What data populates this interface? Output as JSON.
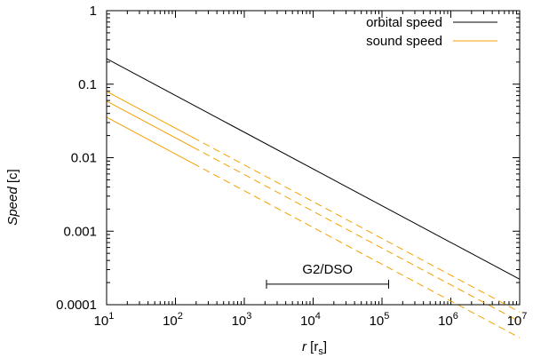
{
  "chart_data": {
    "type": "line",
    "title": "",
    "xscale": "log",
    "yscale": "log",
    "xlim": [
      10,
      10000000
    ],
    "ylim": [
      0.0001,
      1
    ],
    "xlabel": {
      "var": "r",
      "unit_base": "r",
      "unit_sub": "s"
    },
    "ylabel": {
      "var": "Speed",
      "unit": "[c]"
    },
    "x_ticks": [
      {
        "value": 10,
        "base": "10",
        "exp": "1"
      },
      {
        "value": 100,
        "base": "10",
        "exp": "2"
      },
      {
        "value": 1000,
        "base": "10",
        "exp": "3"
      },
      {
        "value": 10000,
        "base": "10",
        "exp": "4"
      },
      {
        "value": 100000,
        "base": "10",
        "exp": "5"
      },
      {
        "value": 1000000,
        "base": "10",
        "exp": "6"
      },
      {
        "value": 10000000,
        "base": "10",
        "exp": "7"
      }
    ],
    "y_ticks": [
      {
        "value": 0.0001,
        "label": "0.0001"
      },
      {
        "value": 0.001,
        "label": "0.001"
      },
      {
        "value": 0.01,
        "label": "0.01"
      },
      {
        "value": 0.1,
        "label": "0.1"
      },
      {
        "value": 1,
        "label": "1"
      }
    ],
    "legend_position": "top-right",
    "legend": [
      {
        "label": "orbital speed",
        "color": "#000000"
      },
      {
        "label": "sound speed",
        "color": "#f5a000"
      }
    ],
    "series": [
      {
        "name": "orbital speed",
        "color": "#000000",
        "dashed": false,
        "points": [
          [
            10,
            0.222
          ],
          [
            10000000,
            0.000222
          ]
        ]
      },
      {
        "name": "sound speed (upper)",
        "color": "#f5a000",
        "dashed": false,
        "points": [
          [
            10,
            0.0795
          ],
          [
            180,
            0.0188
          ]
        ]
      },
      {
        "name": "sound speed (upper, extrapolated)",
        "color": "#f5a000",
        "dashed": true,
        "points": [
          [
            180,
            0.0188
          ],
          [
            10000000,
            7.95e-05
          ]
        ]
      },
      {
        "name": "sound speed (middle)",
        "color": "#f5a000",
        "dashed": false,
        "points": [
          [
            10,
            0.0589
          ],
          [
            180,
            0.0139
          ]
        ]
      },
      {
        "name": "sound speed (middle, extrapolated)",
        "color": "#f5a000",
        "dashed": true,
        "points": [
          [
            180,
            0.0139
          ],
          [
            10000000,
            5.89e-05
          ]
        ]
      },
      {
        "name": "sound speed (lower)",
        "color": "#f5a000",
        "dashed": false,
        "points": [
          [
            10,
            0.0355
          ],
          [
            180,
            0.00837
          ]
        ]
      },
      {
        "name": "sound speed (lower, extrapolated)",
        "color": "#f5a000",
        "dashed": true,
        "points": [
          [
            180,
            0.00837
          ],
          [
            10000000,
            3.55e-05
          ]
        ]
      }
    ],
    "annotations": [
      {
        "label": "G2/DSO",
        "type": "range",
        "x_from": 2100,
        "x_to": 125000,
        "y": 0.00019
      }
    ]
  }
}
